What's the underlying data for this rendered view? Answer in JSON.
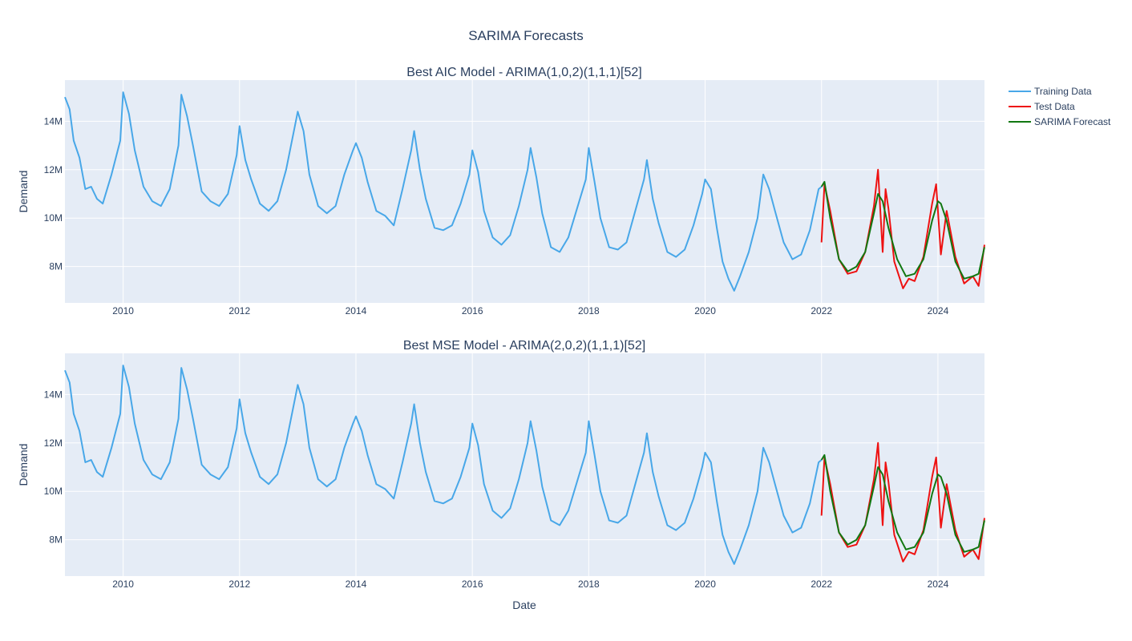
{
  "chart_data": {
    "type": "line",
    "title": "SARIMA Forecasts",
    "xlabel": "Date",
    "ylabel": "Demand",
    "xlim": [
      2009.0,
      2024.8
    ],
    "ylim": [
      6.5,
      15.7
    ],
    "y_unit_suffix": "M",
    "x_ticks": [
      2010,
      2012,
      2014,
      2016,
      2018,
      2020,
      2022,
      2024
    ],
    "y_ticks": [
      8,
      10,
      12,
      14
    ],
    "y_tick_labels": [
      "8M",
      "10M",
      "12M",
      "14M"
    ],
    "grid": true,
    "legend_position": "top-right",
    "legend": [
      "Training Data",
      "Test Data",
      "SARIMA Forecast"
    ],
    "colors": {
      "Training Data": "#48a7e8",
      "Test Data": "#ee1111",
      "SARIMA Forecast": "#117711",
      "plot_bg": "#e5ecf6"
    },
    "training_data": {
      "name": "Training Data",
      "x": [
        2009.0,
        2009.08,
        2009.15,
        2009.25,
        2009.35,
        2009.45,
        2009.55,
        2009.65,
        2009.8,
        2009.95,
        2010.0,
        2010.1,
        2010.2,
        2010.35,
        2010.5,
        2010.65,
        2010.8,
        2010.95,
        2011.0,
        2011.1,
        2011.2,
        2011.35,
        2011.5,
        2011.65,
        2011.8,
        2011.95,
        2012.0,
        2012.1,
        2012.2,
        2012.35,
        2012.5,
        2012.65,
        2012.8,
        2012.95,
        2013.0,
        2013.1,
        2013.2,
        2013.35,
        2013.5,
        2013.65,
        2013.8,
        2013.95,
        2014.0,
        2014.1,
        2014.2,
        2014.35,
        2014.5,
        2014.65,
        2014.8,
        2014.95,
        2015.0,
        2015.1,
        2015.2,
        2015.35,
        2015.5,
        2015.65,
        2015.8,
        2015.95,
        2016.0,
        2016.1,
        2016.2,
        2016.35,
        2016.5,
        2016.65,
        2016.8,
        2016.95,
        2017.0,
        2017.1,
        2017.2,
        2017.35,
        2017.5,
        2017.65,
        2017.8,
        2017.95,
        2018.0,
        2018.1,
        2018.2,
        2018.35,
        2018.5,
        2018.65,
        2018.8,
        2018.95,
        2019.0,
        2019.1,
        2019.2,
        2019.35,
        2019.5,
        2019.65,
        2019.8,
        2019.95,
        2020.0,
        2020.1,
        2020.2,
        2020.3,
        2020.4,
        2020.5,
        2020.6,
        2020.75,
        2020.9,
        2021.0,
        2021.1,
        2021.2,
        2021.35,
        2021.5,
        2021.65,
        2021.8,
        2021.95,
        2022.0
      ],
      "y": [
        15.0,
        14.5,
        13.2,
        12.5,
        11.2,
        11.3,
        10.8,
        10.6,
        11.8,
        13.2,
        15.2,
        14.3,
        12.8,
        11.3,
        10.7,
        10.5,
        11.2,
        13.0,
        15.1,
        14.2,
        13.0,
        11.1,
        10.7,
        10.5,
        11.0,
        12.6,
        13.8,
        12.4,
        11.6,
        10.6,
        10.3,
        10.7,
        12.0,
        13.8,
        14.4,
        13.6,
        11.8,
        10.5,
        10.2,
        10.5,
        11.8,
        12.8,
        13.1,
        12.5,
        11.5,
        10.3,
        10.1,
        9.7,
        11.2,
        12.8,
        13.6,
        12.0,
        10.8,
        9.6,
        9.5,
        9.7,
        10.6,
        11.8,
        12.8,
        11.9,
        10.3,
        9.2,
        8.9,
        9.3,
        10.5,
        12.0,
        12.9,
        11.7,
        10.2,
        8.8,
        8.6,
        9.2,
        10.4,
        11.6,
        12.9,
        11.5,
        10.0,
        8.8,
        8.7,
        9.0,
        10.3,
        11.6,
        12.4,
        10.8,
        9.8,
        8.6,
        8.4,
        8.7,
        9.7,
        11.0,
        11.6,
        11.2,
        9.6,
        8.2,
        7.5,
        7.0,
        7.6,
        8.6,
        10.0,
        11.8,
        11.2,
        10.3,
        9.0,
        8.3,
        8.5,
        9.5,
        11.2,
        11.3
      ]
    },
    "test_data": {
      "name": "Test Data",
      "x": [
        2022.0,
        2022.05,
        2022.15,
        2022.3,
        2022.45,
        2022.6,
        2022.75,
        2022.9,
        2022.97,
        2023.05,
        2023.1,
        2023.15,
        2023.25,
        2023.4,
        2023.5,
        2023.6,
        2023.75,
        2023.9,
        2023.97,
        2024.05,
        2024.15,
        2024.3,
        2024.45,
        2024.6,
        2024.7,
        2024.8
      ],
      "y": [
        9.0,
        11.4,
        10.3,
        8.3,
        7.7,
        7.8,
        8.6,
        10.5,
        12.0,
        8.6,
        11.2,
        10.4,
        8.2,
        7.1,
        7.5,
        7.4,
        8.4,
        10.6,
        11.4,
        8.5,
        10.3,
        8.4,
        7.3,
        7.6,
        7.2,
        8.9
      ]
    },
    "forecast": {
      "name": "SARIMA Forecast",
      "x": [
        2022.0,
        2022.05,
        2022.15,
        2022.3,
        2022.45,
        2022.6,
        2022.75,
        2022.9,
        2022.97,
        2023.05,
        2023.15,
        2023.3,
        2023.45,
        2023.6,
        2023.75,
        2023.9,
        2024.0,
        2024.05,
        2024.15,
        2024.3,
        2024.45,
        2024.6,
        2024.7,
        2024.8
      ],
      "y": [
        11.3,
        11.5,
        10.0,
        8.3,
        7.8,
        8.0,
        8.6,
        10.2,
        11.0,
        10.7,
        9.6,
        8.3,
        7.6,
        7.7,
        8.3,
        9.9,
        10.7,
        10.6,
        9.9,
        8.2,
        7.5,
        7.6,
        7.7,
        8.8
      ]
    },
    "panels": [
      {
        "title": "Best AIC Model - ARIMA(1,0,2)(1,1,1)[52]"
      },
      {
        "title": "Best MSE Model - ARIMA(2,0,2)(1,1,1)[52]"
      }
    ]
  }
}
